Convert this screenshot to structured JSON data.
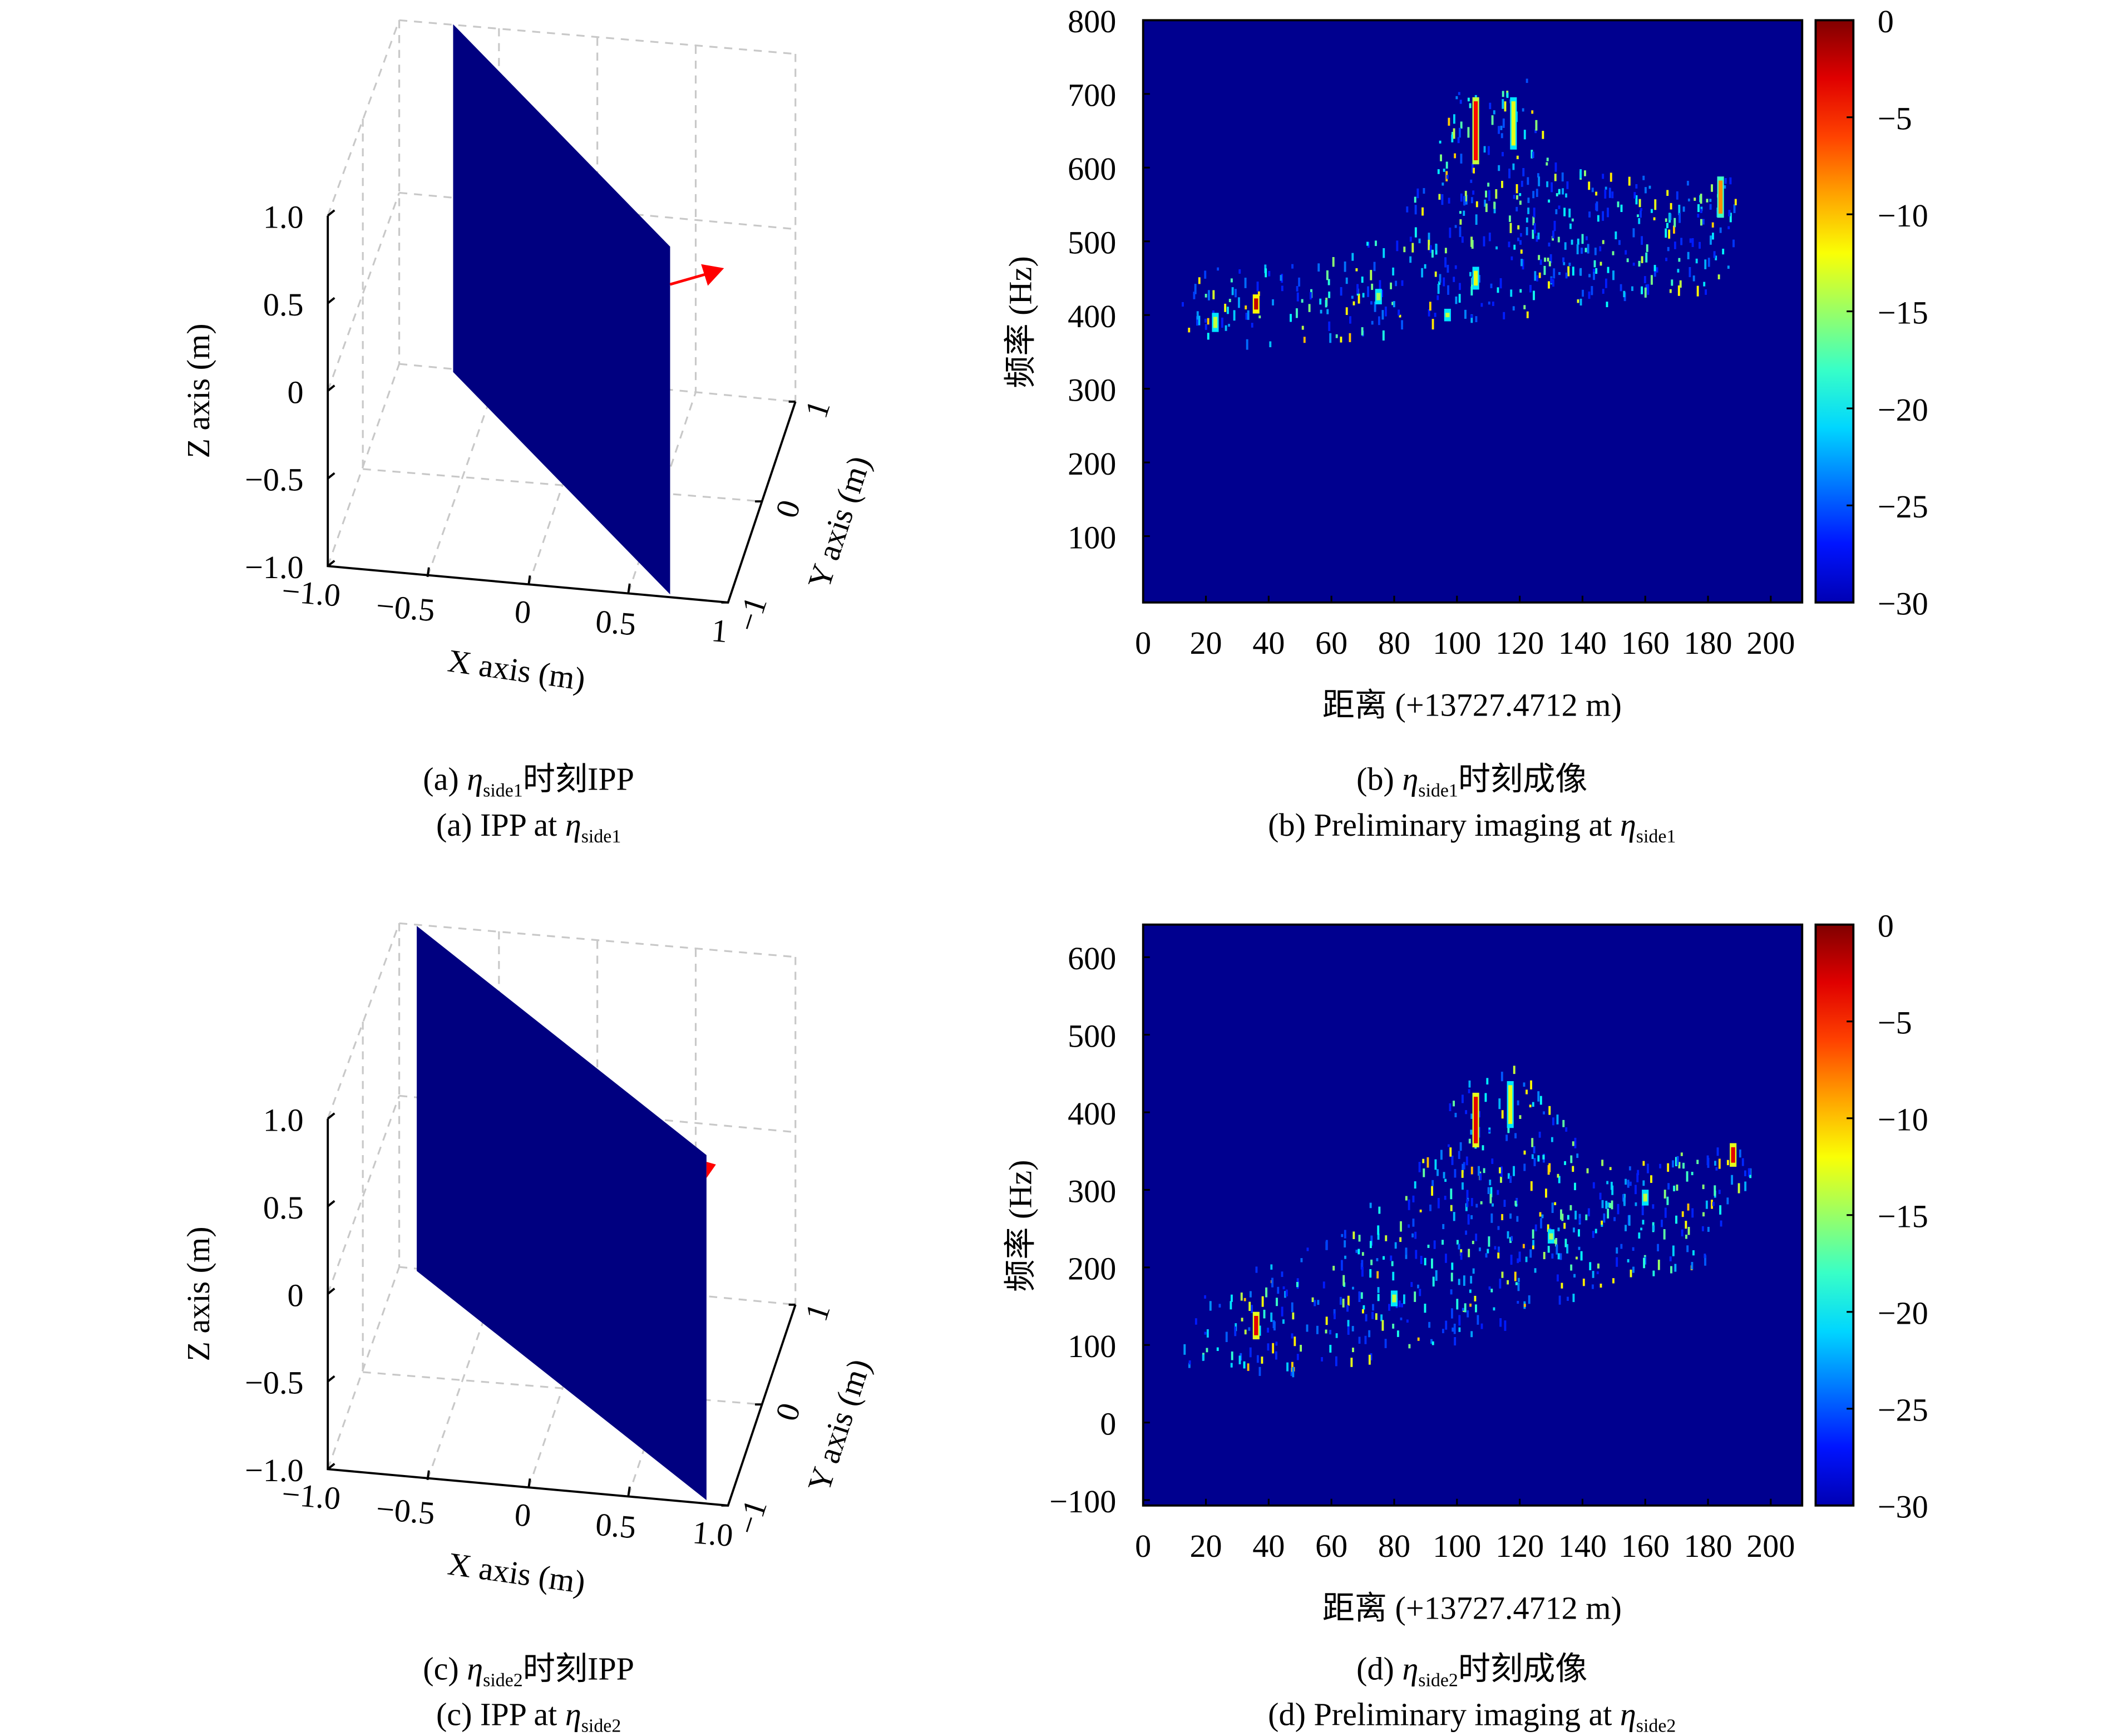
{
  "colors": {
    "plane": "#000080",
    "arrow": "#ff0000",
    "background_jet": "#00008f",
    "grid": "#c8c8c8"
  },
  "panels": {
    "a": {
      "caption_cn": {
        "prefix": "(a) ",
        "eta": "η",
        "sub": "side1",
        "suffix": "时刻IPP"
      },
      "caption_en": {
        "prefix": "(a) IPP at ",
        "eta": "η",
        "sub": "side1"
      },
      "xlabel": "X axis (m)",
      "ylabel": "Y axis (m)",
      "zlabel": "Z axis (m)",
      "zticks": [
        "1.0",
        "0.5",
        "0",
        "−0.5",
        "−1.0"
      ],
      "xticks": [
        "−1.0",
        "−0.5",
        "0",
        "0.5",
        "1"
      ],
      "yticks": [
        "−1",
        "0",
        "1"
      ]
    },
    "c": {
      "caption_cn": {
        "prefix": "(c) ",
        "eta": "η",
        "sub": "side2",
        "suffix": "时刻IPP"
      },
      "caption_en": {
        "prefix": "(c) IPP at ",
        "eta": "η",
        "sub": "side2"
      },
      "xlabel": "X axis (m)",
      "ylabel": "Y axis (m)",
      "zlabel": "Z axis (m)",
      "zticks": [
        "1.0",
        "0.5",
        "0",
        "−0.5",
        "−1.0"
      ],
      "xticks": [
        "−1.0",
        "−0.5",
        "0",
        "0.5",
        "1.0"
      ],
      "yticks": [
        "−1",
        "0",
        "1"
      ]
    },
    "b": {
      "caption_cn": {
        "prefix": "(b) ",
        "eta": "η",
        "sub": "side1",
        "suffix": "时刻成像"
      },
      "caption_en": {
        "prefix": "(b) Preliminary imaging at ",
        "eta": "η",
        "sub": "side1"
      }
    },
    "d": {
      "caption_cn": {
        "prefix": "(d) ",
        "eta": "η",
        "sub": "side2",
        "suffix": "时刻成像"
      },
      "caption_en": {
        "prefix": "(d) Preliminary imaging at ",
        "eta": "η",
        "sub": "side2"
      }
    }
  },
  "chart_data": [
    {
      "panel": "b",
      "type": "heatmap",
      "colormap": "jet",
      "xlabel": "距离 (+13727.4712 m)",
      "ylabel": "频率 (Hz)",
      "xlim": [
        0,
        210
      ],
      "ylim": [
        10,
        800
      ],
      "xticks": [
        0,
        20,
        40,
        60,
        80,
        100,
        120,
        140,
        160,
        180,
        200
      ],
      "yticks": [
        100,
        200,
        300,
        400,
        500,
        600,
        700,
        800
      ],
      "colorbar": {
        "range": [
          -30,
          0
        ],
        "ticks": [
          0,
          -5,
          -10,
          -15,
          -20,
          -25,
          -30
        ]
      },
      "scatter_region": [
        [
          12,
          380
        ],
        [
          50,
          355
        ],
        [
          100,
          392
        ],
        [
          140,
          415
        ],
        [
          180,
          430
        ],
        [
          188,
          470
        ],
        [
          190,
          590
        ],
        [
          170,
          585
        ],
        [
          130,
          610
        ],
        [
          122,
          725
        ],
        [
          100,
          715
        ],
        [
          90,
          600
        ],
        [
          80,
          520
        ],
        [
          60,
          480
        ],
        [
          20,
          465
        ],
        [
          12,
          420
        ]
      ],
      "peaks": [
        {
          "x": 36,
          "y": 415,
          "db": -2,
          "len": 15
        },
        {
          "x": 106,
          "y": 650,
          "db": -4,
          "len": 80
        },
        {
          "x": 118,
          "y": 660,
          "db": -12,
          "len": 60
        },
        {
          "x": 184,
          "y": 560,
          "db": -8,
          "len": 45
        },
        {
          "x": 75,
          "y": 425,
          "db": -14,
          "len": 10
        },
        {
          "x": 97,
          "y": 400,
          "db": -13,
          "len": 6
        },
        {
          "x": 23,
          "y": 390,
          "db": -13,
          "len": 15
        },
        {
          "x": 106,
          "y": 450,
          "db": -12,
          "len": 20
        }
      ]
    },
    {
      "panel": "d",
      "type": "heatmap",
      "colormap": "jet",
      "xlabel": "距离 (+13727.4712 m)",
      "ylabel": "频率 (Hz)",
      "xlim": [
        0,
        210
      ],
      "ylim": [
        -107,
        642
      ],
      "xticks": [
        0,
        20,
        40,
        60,
        80,
        100,
        120,
        140,
        160,
        180,
        200
      ],
      "yticks": [
        -100,
        0,
        100,
        200,
        300,
        400,
        500,
        600
      ],
      "colorbar": {
        "range": [
          -30,
          0
        ],
        "ticks": [
          0,
          -5,
          -10,
          -15,
          -20,
          -25,
          -30
        ]
      },
      "scatter_region": [
        [
          12,
          75
        ],
        [
          50,
          68
        ],
        [
          100,
          110
        ],
        [
          140,
          160
        ],
        [
          180,
          205
        ],
        [
          185,
          260
        ],
        [
          196,
          345
        ],
        [
          185,
          360
        ],
        [
          150,
          330
        ],
        [
          122,
          465
        ],
        [
          100,
          445
        ],
        [
          92,
          350
        ],
        [
          60,
          250
        ],
        [
          20,
          170
        ],
        [
          12,
          100
        ]
      ],
      "peaks": [
        {
          "x": 36,
          "y": 125,
          "db": -3,
          "len": 25
        },
        {
          "x": 106,
          "y": 390,
          "db": -3,
          "len": 60
        },
        {
          "x": 117,
          "y": 410,
          "db": -12,
          "len": 50
        },
        {
          "x": 188,
          "y": 345,
          "db": -3,
          "len": 20
        },
        {
          "x": 80,
          "y": 160,
          "db": -13,
          "len": 10
        },
        {
          "x": 160,
          "y": 290,
          "db": -13,
          "len": 10
        },
        {
          "x": 130,
          "y": 240,
          "db": -14,
          "len": 8
        }
      ]
    }
  ]
}
